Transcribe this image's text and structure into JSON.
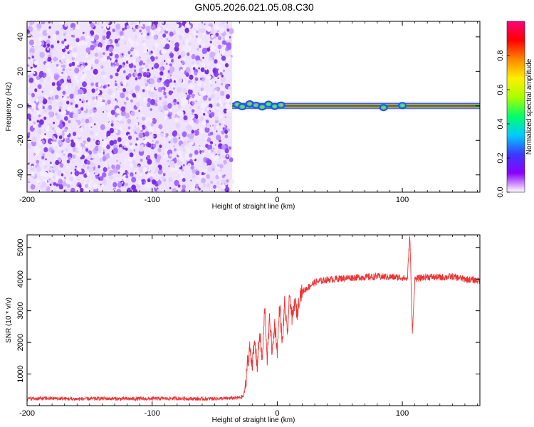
{
  "title": "GN05.2026.021.05.08.C30",
  "chart_data": [
    {
      "type": "heatmap",
      "title": "GN05.2026.021.05.08.C30",
      "xlabel": "Height of straight line (km)",
      "ylabel": "Frequency (Hz)",
      "xlim": [
        -200,
        162
      ],
      "ylim": [
        -50,
        49
      ],
      "xticks": [
        -200,
        -100,
        0,
        100
      ],
      "yticks": [
        -40,
        -20,
        0,
        20,
        40
      ],
      "colorbar": {
        "label": "Normalized spectral amplitude",
        "range": [
          0,
          1
        ],
        "ticks": [
          0.0,
          0.2,
          0.4,
          0.6,
          0.8
        ],
        "tick_labels": [
          "0.0",
          "0.2",
          "0.4",
          "0.6",
          "0.8"
        ],
        "colormap": [
          "#ffffff",
          "#8a00ff",
          "#3a3aff",
          "#00ccff",
          "#00ff66",
          "#a8ff00",
          "#ffee00",
          "#ff8800",
          "#ff0000",
          "#ff007a"
        ]
      },
      "regions": [
        {
          "x_range": [
            -200,
            -36
          ],
          "y_range": [
            -50,
            49
          ],
          "description_level": 0.12
        },
        {
          "x_range": [
            -36,
            162
          ],
          "y_range": [
            -1.5,
            1.5
          ],
          "description_level": 0.9
        }
      ],
      "grid": false
    },
    {
      "type": "line",
      "xlabel": "Height of straight line (km)",
      "ylabel": "SNR (10 * v/v)",
      "xlim": [
        -200,
        162
      ],
      "ylim": [
        0,
        5400
      ],
      "xticks": [
        -200,
        -100,
        0,
        100
      ],
      "yticks": [
        1000,
        2000,
        3000,
        4000,
        5000
      ],
      "color": "#ee3333",
      "series": [
        {
          "x": [
            -200,
            -180,
            -160,
            -140,
            -120,
            -100,
            -80,
            -60,
            -40,
            -30,
            -27,
            -25,
            -24,
            -23,
            -22,
            -20,
            -18,
            -16,
            -14,
            -12,
            -10,
            -8,
            -6,
            -4,
            -2,
            0,
            2,
            4,
            6,
            8,
            10,
            12,
            14,
            16,
            18,
            20,
            25,
            30,
            40,
            50,
            60,
            70,
            80,
            90,
            100,
            104,
            106,
            108,
            110,
            120,
            130,
            140,
            150,
            162
          ],
          "y": [
            220,
            230,
            210,
            225,
            215,
            220,
            230,
            215,
            230,
            250,
            300,
            700,
            1500,
            1250,
            1900,
            1300,
            2000,
            1250,
            2300,
            1400,
            3100,
            1500,
            2800,
            1650,
            2600,
            1750,
            3200,
            1900,
            3300,
            2200,
            3500,
            2700,
            3300,
            2900,
            3500,
            3600,
            3750,
            3900,
            3980,
            4020,
            4050,
            4060,
            4080,
            4070,
            4050,
            4000,
            5400,
            2300,
            4000,
            4080,
            4050,
            4080,
            4000,
            3950
          ]
        }
      ],
      "grid": false
    }
  ]
}
